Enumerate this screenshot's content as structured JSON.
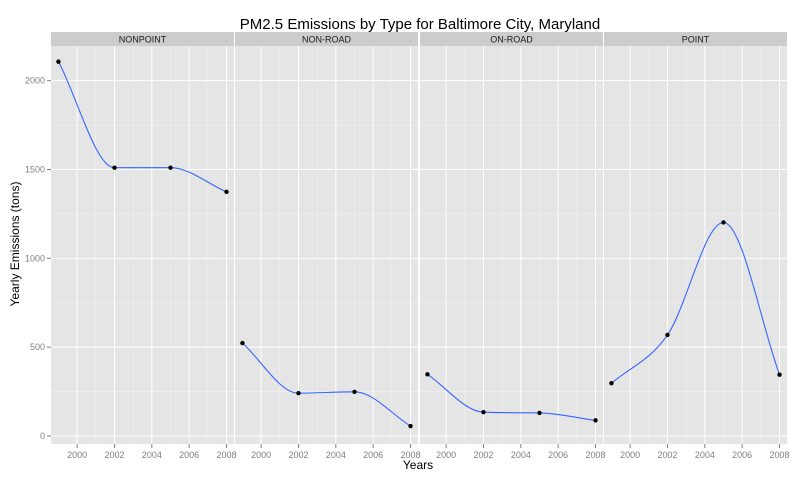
{
  "chart_data": {
    "type": "line",
    "title": "PM2.5 Emissions by Type for Baltimore City, Maryland",
    "xlabel": "Years",
    "ylabel": "Yearly Emissions (tons)",
    "x_ticks": [
      2000,
      2002,
      2004,
      2006,
      2008
    ],
    "y_ticks": [
      0,
      500,
      1000,
      1500,
      2000
    ],
    "xlim": [
      1998.6,
      2008.4
    ],
    "ylim": [
      -45,
      2195
    ],
    "grid": true,
    "facets": [
      {
        "name": "NONPOINT",
        "x": [
          1999,
          2002,
          2005,
          2008
        ],
        "y": [
          2107,
          1510,
          1510,
          1374
        ]
      },
      {
        "name": "NON-ROAD",
        "x": [
          1999,
          2002,
          2005,
          2008
        ],
        "y": [
          523,
          241,
          249,
          56
        ]
      },
      {
        "name": "ON-ROAD",
        "x": [
          1999,
          2002,
          2005,
          2008
        ],
        "y": [
          347,
          134,
          130,
          88
        ]
      },
      {
        "name": "POINT",
        "x": [
          1999,
          2002,
          2005,
          2008
        ],
        "y": [
          297,
          569,
          1202,
          345
        ]
      }
    ]
  }
}
